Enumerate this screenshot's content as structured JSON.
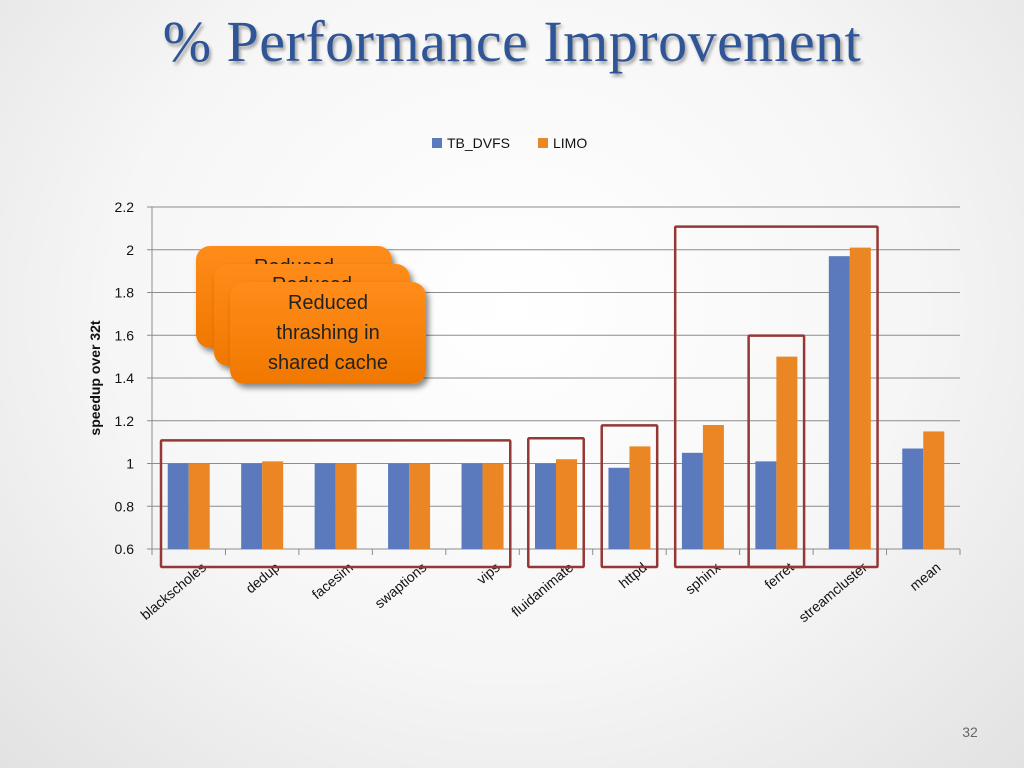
{
  "slide": {
    "title": "% Performance Improvement",
    "callout_text": "Reduced\nthrashing in\nshared cache",
    "page_number": "32"
  },
  "colors": {
    "title": "#2f5597",
    "tb_dvfs": "#5b79bd",
    "limo": "#ea8623",
    "highlight_box": "#953735",
    "callout": "#f58220"
  },
  "chart_data": {
    "type": "bar",
    "title": "",
    "xlabel": "",
    "ylabel": "speedup over 32t",
    "ylim": [
      0.6,
      2.2
    ],
    "yticks": [
      "0.6",
      "0.8",
      "1",
      "1.2",
      "1.4",
      "1.6",
      "1.8",
      "2",
      "2.2"
    ],
    "grid": true,
    "legend_position": "top",
    "categories": [
      "blackscholes",
      "dedup",
      "facesim",
      "swaptions",
      "vips",
      "fluidanimate",
      "httpd",
      "sphinx",
      "ferret",
      "streamcluster",
      "mean"
    ],
    "series": [
      {
        "name": "TB_DVFS",
        "values": [
          1.0,
          1.0,
          1.0,
          1.0,
          1.0,
          1.0,
          0.98,
          1.05,
          1.01,
          1.97,
          1.07
        ]
      },
      {
        "name": "LIMO",
        "values": [
          1.0,
          1.01,
          1.0,
          1.0,
          1.0,
          1.02,
          1.08,
          1.18,
          1.5,
          2.01,
          1.15
        ]
      }
    ],
    "highlight_groups": [
      [
        "blackscholes",
        "dedup",
        "facesim",
        "swaptions",
        "vips"
      ],
      [
        "fluidanimate"
      ],
      [
        "httpd"
      ],
      [
        "sphinx",
        "ferret",
        "streamcluster"
      ],
      [
        "ferret"
      ]
    ]
  }
}
